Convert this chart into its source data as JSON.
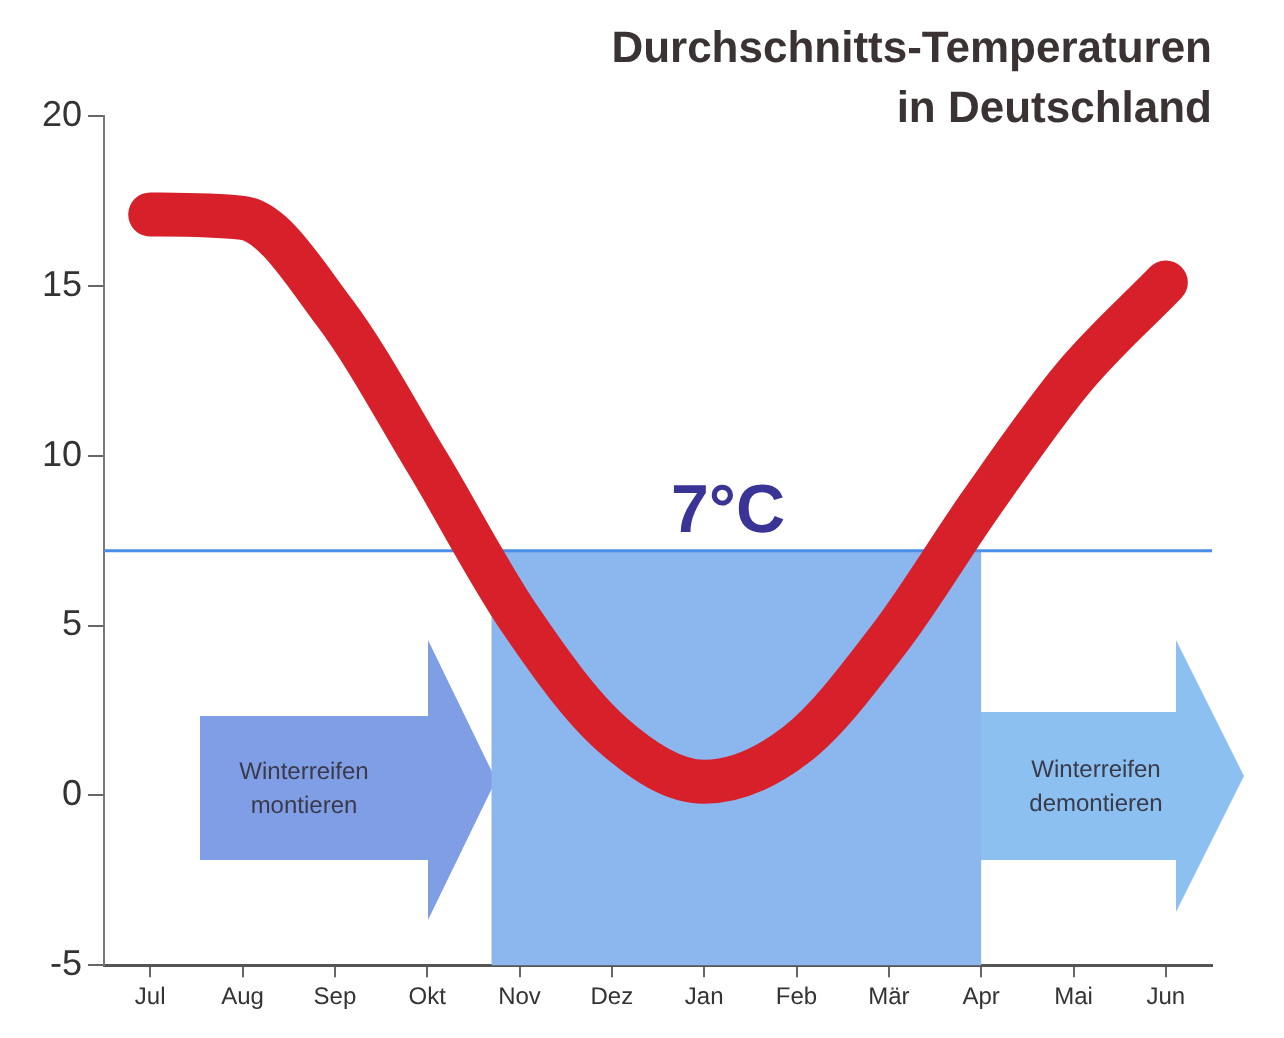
{
  "chart_data": {
    "type": "line",
    "title": "Durchschnitts-Temperaturen in Deutschland",
    "categories": [
      "Jul",
      "Aug",
      "Sep",
      "Okt",
      "Nov",
      "Dez",
      "Jan",
      "Feb",
      "Mär",
      "Apr",
      "Mai",
      "Jun"
    ],
    "series": [
      {
        "color": "#d7202a",
        "values": [
          17.1,
          17.0,
          14.2,
          9.8,
          5.2,
          1.8,
          0.4,
          1.5,
          4.6,
          8.6,
          12.3,
          15.1
        ]
      }
    ],
    "ylim": [
      -5,
      20
    ],
    "yticks": [
      -5,
      0,
      5,
      10,
      15,
      20
    ],
    "grid": false,
    "legend": false,
    "marker": "none",
    "line_style": "solid",
    "ref_lines": [
      {
        "axis": "y",
        "value": 7.2,
        "label": "7°C",
        "color": "#4a8ee8"
      }
    ],
    "bands": [
      {
        "axis": "x",
        "from": "Nov",
        "to": "Apr",
        "color": "#8cb6ee"
      }
    ],
    "annotations": [
      "Winterreifen montieren",
      "Winterreifen demontieren"
    ]
  }
}
